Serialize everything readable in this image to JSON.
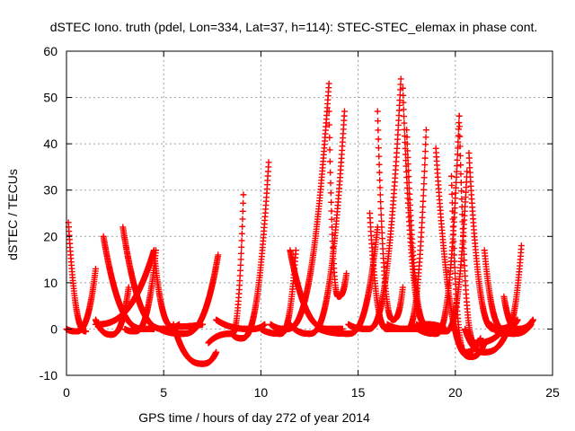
{
  "chart_data": {
    "type": "scatter",
    "title": "dSTEC Iono. truth (pdel, Lon=334, Lat=37, h=114): STEC-STEC_elemax in phase cont.",
    "xlabel": "GPS time / hours of day 272 of year 2014",
    "ylabel": "dSTEC  / TECUs",
    "xlim": [
      0,
      25
    ],
    "ylim": [
      -10,
      60
    ],
    "x_ticks": [
      0,
      5,
      10,
      15,
      20,
      25
    ],
    "x_tick_labels": [
      "0",
      "5",
      "10",
      "15",
      "20",
      "25"
    ],
    "y_ticks": [
      -10,
      0,
      10,
      20,
      30,
      40,
      50,
      60
    ],
    "y_tick_labels": [
      "-10",
      "0",
      "10",
      "20",
      "30",
      "40",
      "50",
      "60"
    ],
    "grid": true,
    "marker": "plus",
    "color": "#ff0000",
    "arcs": [
      {
        "start": 0.1,
        "min_t": 1.0,
        "end": 0.1,
        "start_val": 23,
        "min_val": -0.5,
        "end_val": -0.5
      },
      {
        "start": 0.0,
        "min_t": 0.5,
        "end": 1.5,
        "start_val": 0,
        "min_val": -0.5,
        "end_val": 13
      },
      {
        "start": 1.5,
        "min_t": 1.5,
        "end": 4.5,
        "start_val": 1,
        "min_val": 1,
        "end_val": 17
      },
      {
        "start": 1.9,
        "min_t": 4.0,
        "end": 4.5,
        "start_val": 20,
        "min_val": 0,
        "end_val": 0
      },
      {
        "start": 1.5,
        "min_t": 2.3,
        "end": 3.2,
        "start_val": 2,
        "min_val": -1.2,
        "end_val": 9
      },
      {
        "start": 2.9,
        "min_t": 5.0,
        "end": 5.8,
        "start_val": 22,
        "min_val": 0,
        "end_val": 1
      },
      {
        "start": 3.0,
        "min_t": 3.5,
        "end": 4.6,
        "start_val": 0,
        "min_val": -0.5,
        "end_val": 17
      },
      {
        "start": 4.5,
        "min_t": 5.5,
        "end": 7.0,
        "start_val": 17,
        "min_val": 0.5,
        "end_val": 1
      },
      {
        "start": 5.5,
        "min_t": 7.0,
        "end": 7.7,
        "start_val": 1,
        "min_val": -7.5,
        "end_val": -5
      },
      {
        "start": 4.8,
        "min_t": 6.0,
        "end": 7.8,
        "start_val": 0,
        "min_val": -1,
        "end_val": 16
      },
      {
        "start": 7.3,
        "min_t": 8.5,
        "end": 9.1,
        "start_val": -3,
        "min_val": -1,
        "end_val": 29
      },
      {
        "start": 7.7,
        "min_t": 9.5,
        "end": 10.2,
        "start_val": 2,
        "min_val": 0,
        "end_val": 1
      },
      {
        "start": 8.5,
        "min_t": 9.0,
        "end": 10.4,
        "start_val": -1,
        "min_val": -2,
        "end_val": 36
      },
      {
        "start": 10.0,
        "min_t": 11.0,
        "end": 11.8,
        "start_val": 0,
        "min_val": -1,
        "end_val": 17
      },
      {
        "start": 10.5,
        "min_t": 11.3,
        "end": 13.5,
        "start_val": 1,
        "min_val": 0,
        "end_val": 53
      },
      {
        "start": 11.5,
        "min_t": 12.5,
        "end": 14.3,
        "start_val": 1,
        "min_val": -1,
        "end_val": 47
      },
      {
        "start": 11.5,
        "min_t": 13.5,
        "end": 14.2,
        "start_val": 17,
        "min_val": 0,
        "end_val": 0
      },
      {
        "start": 13.5,
        "min_t": 14.0,
        "end": 14.4,
        "start_val": 47,
        "min_val": 7,
        "end_val": 12
      },
      {
        "start": 13.0,
        "min_t": 14.5,
        "end": 16.0,
        "start_val": 0,
        "min_val": -1,
        "end_val": 22
      },
      {
        "start": 14.5,
        "min_t": 15.5,
        "end": 17.2,
        "start_val": 1,
        "min_val": 0,
        "end_val": 54
      },
      {
        "start": 15.6,
        "min_t": 16.5,
        "end": 18.0,
        "start_val": 25,
        "min_val": 0,
        "end_val": 0
      },
      {
        "start": 16.0,
        "min_t": 16.8,
        "end": 17.3,
        "start_val": 47,
        "min_val": 2,
        "end_val": 9
      },
      {
        "start": 16.5,
        "min_t": 17.5,
        "end": 18.5,
        "start_val": 1,
        "min_val": 0,
        "end_val": 43
      },
      {
        "start": 17.3,
        "min_t": 18.5,
        "end": 19.2,
        "start_val": 52,
        "min_val": 1,
        "end_val": 0
      },
      {
        "start": 17.5,
        "min_t": 18.5,
        "end": 19.5,
        "start_val": 43,
        "min_val": 1,
        "end_val": 0
      },
      {
        "start": 17.8,
        "min_t": 19.0,
        "end": 20.2,
        "start_val": 1,
        "min_val": -1,
        "end_val": 46
      },
      {
        "start": 18.0,
        "min_t": 19.5,
        "end": 20.6,
        "start_val": 1,
        "min_val": -0.5,
        "end_val": 34
      },
      {
        "start": 19.0,
        "min_t": 20.8,
        "end": 21.5,
        "start_val": 39,
        "min_val": -6,
        "end_val": -3
      },
      {
        "start": 19.8,
        "min_t": 20.5,
        "end": 21.3,
        "start_val": 33,
        "min_val": -5,
        "end_val": -2
      },
      {
        "start": 20.2,
        "min_t": 21.0,
        "end": 22.5,
        "start_val": 46,
        "min_val": -3,
        "end_val": 0
      },
      {
        "start": 20.5,
        "min_t": 21.5,
        "end": 22.8,
        "start_val": 0,
        "min_val": -5,
        "end_val": 1
      },
      {
        "start": 20.7,
        "min_t": 22.0,
        "end": 23.0,
        "start_val": 38,
        "min_val": 0,
        "end_val": 1
      },
      {
        "start": 21.5,
        "min_t": 22.5,
        "end": 23.2,
        "start_val": 17,
        "min_val": 0,
        "end_val": 2
      },
      {
        "start": 21.8,
        "min_t": 23.0,
        "end": 23.9,
        "start_val": 1,
        "min_val": -1,
        "end_val": 1
      },
      {
        "start": 22.0,
        "min_t": 22.5,
        "end": 23.4,
        "start_val": 0,
        "min_val": -1,
        "end_val": 18
      },
      {
        "start": 22.5,
        "min_t": 23.2,
        "end": 24.0,
        "start_val": 7,
        "min_val": 0,
        "end_val": 2
      }
    ]
  }
}
